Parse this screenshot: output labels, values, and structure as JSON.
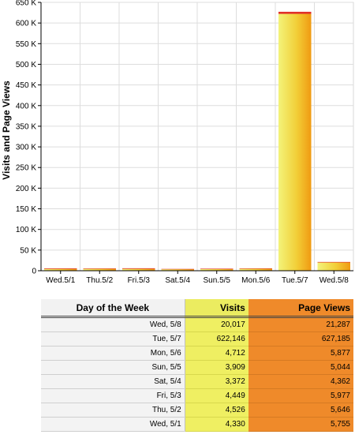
{
  "chart_data": {
    "type": "bar",
    "ylabel": "Visits and Page Views",
    "xlabel": "",
    "categories": [
      "Wed.5/1",
      "Thu.5/2",
      "Fri.5/3",
      "Sat.5/4",
      "Sun.5/5",
      "Mon.5/6",
      "Tue.5/7",
      "Wed.5/8"
    ],
    "series": [
      {
        "name": "Visits",
        "values": [
          4330,
          4526,
          4449,
          3372,
          3909,
          4712,
          622146,
          20017
        ]
      },
      {
        "name": "Page Views",
        "values": [
          5755,
          5646,
          5977,
          4362,
          5044,
          5877,
          627185,
          21287
        ]
      }
    ],
    "ylim": [
      0,
      650000
    ],
    "yticks": [
      0,
      50000,
      100000,
      150000,
      200000,
      250000,
      300000,
      350000,
      400000,
      450000,
      500000,
      550000,
      600000,
      650000
    ],
    "ytick_labels": [
      "0",
      "50 K",
      "100 K",
      "150 K",
      "200 K",
      "250 K",
      "300 K",
      "350 K",
      "400 K",
      "450 K",
      "500 K",
      "550 K",
      "600 K",
      "650 K"
    ],
    "grid": true,
    "colors": {
      "visits": "#ecec58",
      "page_views": "#e0302a",
      "bar_shade": "#f0a010"
    }
  },
  "table": {
    "headers": {
      "day": "Day of the Week",
      "visits": "Visits",
      "page_views": "Page Views"
    },
    "rows": [
      {
        "day": "Wed, 5/8",
        "visits": "20,017",
        "page_views": "21,287"
      },
      {
        "day": "Tue, 5/7",
        "visits": "622,146",
        "page_views": "627,185"
      },
      {
        "day": "Mon, 5/6",
        "visits": "4,712",
        "page_views": "5,877"
      },
      {
        "day": "Sun, 5/5",
        "visits": "3,909",
        "page_views": "5,044"
      },
      {
        "day": "Sat, 5/4",
        "visits": "3,372",
        "page_views": "4,362"
      },
      {
        "day": "Fri, 5/3",
        "visits": "4,449",
        "page_views": "5,977"
      },
      {
        "day": "Thu, 5/2",
        "visits": "4,526",
        "page_views": "5,646"
      },
      {
        "day": "Wed, 5/1",
        "visits": "4,330",
        "page_views": "5,755"
      }
    ],
    "colors": {
      "visits_col": "#efef62",
      "page_views_col": "#ef8a2a",
      "day_col": "#f3f3f3"
    }
  }
}
